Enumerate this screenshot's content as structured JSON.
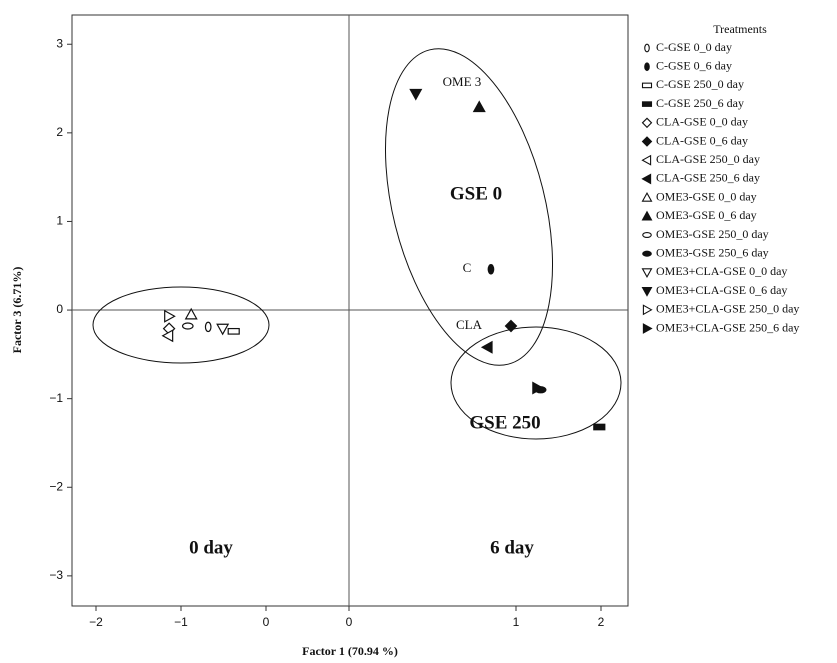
{
  "chart_data": {
    "type": "scatter",
    "xlabel": "Factor 1 (70.94 %)",
    "ylabel": "Factor 3 (6.71%)",
    "legend_title": "Treatments",
    "legend_position": "right",
    "xlim": [
      -2.28,
      2.32
    ],
    "ylim": [
      -3.34,
      3.33
    ],
    "xticks": [
      {
        "value": -2,
        "label": "−2"
      },
      {
        "value": -1,
        "label": "−1"
      },
      0,
      0,
      1,
      2
    ],
    "yticks": [
      {
        "value": -3,
        "label": "−3"
      },
      {
        "value": -2,
        "label": "−2"
      },
      {
        "value": -1,
        "label": "−1"
      },
      0,
      1,
      2,
      3
    ],
    "color": "#111111",
    "annotations": [
      "OME 3",
      "C",
      "CLA",
      "GSE 0",
      "GSE 250",
      "0 day",
      "6 day"
    ],
    "series": [
      {
        "name": "C-GSE 0_0 day",
        "marker": "oval",
        "filled": false,
        "x": [
          -0.68
        ],
        "values": [
          -0.19
        ]
      },
      {
        "name": "C-GSE 0_6 day",
        "marker": "oval",
        "filled": true,
        "x": [
          0.85
        ],
        "values": [
          0.46
        ]
      },
      {
        "name": "C-GSE 250_0 day",
        "marker": "rect",
        "filled": false,
        "x": [
          -0.38
        ],
        "values": [
          -0.24
        ]
      },
      {
        "name": "C-GSE 250_6 day",
        "marker": "rect",
        "filled": true,
        "x": [
          1.98
        ],
        "values": [
          -1.32
        ]
      },
      {
        "name": "CLA-GSE 0_0 day",
        "marker": "diamond",
        "filled": false,
        "x": [
          -1.14
        ],
        "values": [
          -0.21
        ]
      },
      {
        "name": "CLA-GSE 0_6 day",
        "marker": "diamond",
        "filled": true,
        "x": [
          0.97
        ],
        "values": [
          -0.18
        ]
      },
      {
        "name": "CLA-GSE 250_0 day",
        "marker": "triangle-left",
        "filled": false,
        "x": [
          -1.15
        ],
        "values": [
          -0.29
        ]
      },
      {
        "name": "CLA-GSE 250_6 day",
        "marker": "triangle-left",
        "filled": true,
        "x": [
          0.83
        ],
        "values": [
          -0.42
        ]
      },
      {
        "name": "OME3-GSE 0_0 day",
        "marker": "triangle-up",
        "filled": false,
        "x": [
          -0.88
        ],
        "values": [
          -0.05
        ]
      },
      {
        "name": "OME3-GSE 0_6 day",
        "marker": "triangle-up",
        "filled": true,
        "x": [
          0.78
        ],
        "values": [
          2.29
        ]
      },
      {
        "name": "OME3-GSE 250_0 day",
        "marker": "ellipse",
        "filled": false,
        "x": [
          -0.92
        ],
        "values": [
          -0.18
        ]
      },
      {
        "name": "OME3-GSE 250_6 day",
        "marker": "ellipse",
        "filled": true,
        "x": [
          1.29
        ],
        "values": [
          -0.9
        ]
      },
      {
        "name": "OME3+CLA-GSE 0_0 day",
        "marker": "triangle-down",
        "filled": false,
        "x": [
          -0.51
        ],
        "values": [
          -0.21
        ]
      },
      {
        "name": "OME3+CLA-GSE 0_6 day",
        "marker": "triangle-down",
        "filled": true,
        "x": [
          0.4
        ],
        "values": [
          2.44
        ]
      },
      {
        "name": "OME3+CLA-GSE 250_0 day",
        "marker": "triangle-right",
        "filled": false,
        "x": [
          -1.14
        ],
        "values": [
          -0.07
        ]
      },
      {
        "name": "OME3+CLA-GSE 250_6 day",
        "marker": "triangle-right",
        "filled": true,
        "x": [
          1.25
        ],
        "values": [
          -0.88
        ]
      }
    ]
  }
}
